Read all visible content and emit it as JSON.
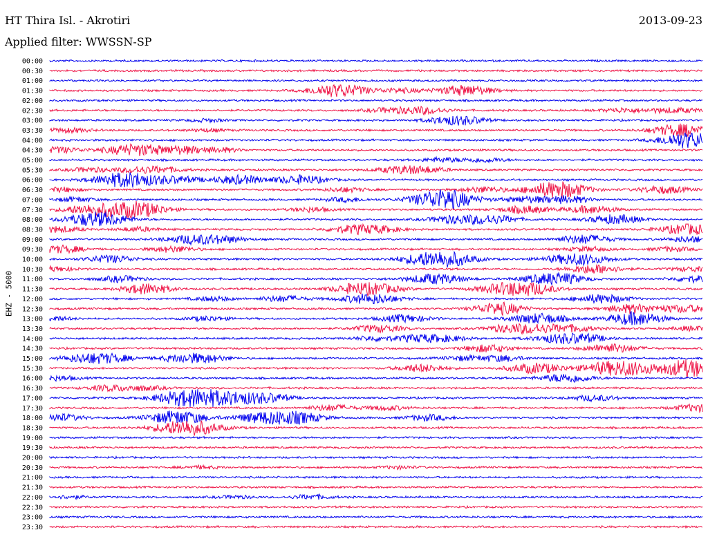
{
  "header": {
    "station": "HT Thira Isl. - Akrotiri",
    "date": "2013-09-23",
    "filter": "Applied filter: WWSSN-SP"
  },
  "chart_data": {
    "type": "line",
    "title": "HT Thira Isl. - Akrotiri",
    "ylabel": "EHZ - 5000",
    "colors": [
      "#0000ee",
      "#ee1144"
    ],
    "rows": [
      {
        "label": "00:00",
        "events": []
      },
      {
        "label": "00:30",
        "events": []
      },
      {
        "label": "01:00",
        "events": []
      },
      {
        "label": "01:30",
        "events": [
          [
            470,
            4
          ],
          [
            490,
            5
          ],
          [
            520,
            3
          ],
          [
            580,
            3
          ],
          [
            672,
            7
          ]
        ]
      },
      {
        "label": "02:00",
        "events": []
      },
      {
        "label": "02:30",
        "events": [
          [
            560,
            3
          ],
          [
            610,
            5
          ],
          [
            900,
            3
          ],
          [
            960,
            3
          ],
          [
            1000,
            2
          ]
        ]
      },
      {
        "label": "03:00",
        "events": [
          [
            300,
            2
          ],
          [
            650,
            5
          ],
          [
            680,
            3
          ]
        ]
      },
      {
        "label": "03:30",
        "events": [
          [
            100,
            3
          ],
          [
            300,
            2
          ],
          [
            970,
            5
          ],
          [
            1000,
            5
          ]
        ]
      },
      {
        "label": "04:00",
        "events": [
          [
            980,
            3
          ],
          [
            1003,
            9
          ]
        ]
      },
      {
        "label": "04:30",
        "events": [
          [
            85,
            4
          ],
          [
            195,
            8
          ],
          [
            265,
            5
          ],
          [
            320,
            3
          ]
        ]
      },
      {
        "label": "05:00",
        "events": [
          [
            640,
            3
          ],
          [
            700,
            3
          ]
        ]
      },
      {
        "label": "05:30",
        "events": [
          [
            130,
            3
          ],
          [
            200,
            4
          ],
          [
            240,
            3
          ],
          [
            580,
            5
          ],
          [
            620,
            3
          ]
        ]
      },
      {
        "label": "06:00",
        "events": [
          [
            165,
            6
          ],
          [
            200,
            7
          ],
          [
            260,
            4
          ],
          [
            345,
            6
          ],
          [
            435,
            6
          ]
        ]
      },
      {
        "label": "06:30",
        "events": [
          [
            90,
            3
          ],
          [
            500,
            3
          ],
          [
            700,
            4
          ],
          [
            795,
            7
          ],
          [
            820,
            6
          ],
          [
            960,
            5
          ]
        ]
      },
      {
        "label": "07:00",
        "events": [
          [
            110,
            3
          ],
          [
            500,
            3
          ],
          [
            632,
            8
          ],
          [
            652,
            7
          ],
          [
            760,
            4
          ],
          [
            820,
            5
          ]
        ]
      },
      {
        "label": "07:30",
        "events": [
          [
            120,
            5
          ],
          [
            175,
            8
          ],
          [
            210,
            6
          ],
          [
            450,
            3
          ],
          [
            760,
            5
          ],
          [
            855,
            5
          ]
        ]
      },
      {
        "label": "08:00",
        "events": [
          [
            125,
            6
          ],
          [
            155,
            6
          ],
          [
            655,
            5
          ],
          [
            710,
            6
          ],
          [
            890,
            6
          ]
        ]
      },
      {
        "label": "08:30",
        "events": [
          [
            85,
            4
          ],
          [
            200,
            3
          ],
          [
            510,
            5
          ],
          [
            550,
            4
          ],
          [
            995,
            7
          ]
        ]
      },
      {
        "label": "09:00",
        "events": [
          [
            278,
            6
          ],
          [
            325,
            4
          ],
          [
            845,
            6
          ],
          [
            1000,
            4
          ]
        ]
      },
      {
        "label": "09:30",
        "events": [
          [
            88,
            5
          ],
          [
            250,
            4
          ],
          [
            850,
            3
          ],
          [
            972,
            3
          ]
        ]
      },
      {
        "label": "10:00",
        "events": [
          [
            160,
            5
          ],
          [
            620,
            8
          ],
          [
            655,
            6
          ],
          [
            835,
            8
          ]
        ]
      },
      {
        "label": "10:30",
        "events": [
          [
            80,
            3
          ],
          [
            860,
            6
          ],
          [
            1000,
            3
          ]
        ]
      },
      {
        "label": "11:00",
        "events": [
          [
            175,
            4
          ],
          [
            630,
            7
          ],
          [
            790,
            6
          ],
          [
            820,
            4
          ],
          [
            1005,
            4
          ]
        ]
      },
      {
        "label": "11:30",
        "events": [
          [
            205,
            4
          ],
          [
            220,
            4
          ],
          [
            510,
            5
          ],
          [
            545,
            6
          ],
          [
            735,
            8
          ],
          [
            775,
            5
          ]
        ]
      },
      {
        "label": "12:00",
        "events": [
          [
            310,
            3
          ],
          [
            410,
            4
          ],
          [
            535,
            7
          ],
          [
            870,
            6
          ]
        ]
      },
      {
        "label": "12:30",
        "events": [
          [
            715,
            5
          ],
          [
            730,
            4
          ],
          [
            915,
            6
          ],
          [
            990,
            5
          ]
        ]
      },
      {
        "label": "13:00",
        "events": [
          [
            75,
            3
          ],
          [
            300,
            3
          ],
          [
            585,
            5
          ],
          [
            780,
            7
          ],
          [
            910,
            5
          ],
          [
            930,
            5
          ]
        ]
      },
      {
        "label": "13:30",
        "events": [
          [
            548,
            5
          ],
          [
            730,
            4
          ],
          [
            775,
            6
          ],
          [
            830,
            4
          ],
          [
            1003,
            3
          ]
        ]
      },
      {
        "label": "14:00",
        "events": [
          [
            540,
            3
          ],
          [
            607,
            5
          ],
          [
            650,
            3
          ],
          [
            810,
            6
          ],
          [
            850,
            4
          ]
        ]
      },
      {
        "label": "14:30",
        "events": [
          [
            705,
            5
          ],
          [
            885,
            6
          ]
        ]
      },
      {
        "label": "15:00",
        "events": [
          [
            120,
            5
          ],
          [
            160,
            5
          ],
          [
            265,
            5
          ],
          [
            300,
            4
          ],
          [
            670,
            3
          ],
          [
            725,
            4
          ]
        ]
      },
      {
        "label": "15:30",
        "events": [
          [
            610,
            5
          ],
          [
            775,
            7
          ],
          [
            880,
            7
          ],
          [
            915,
            6
          ],
          [
            985,
            7
          ],
          [
            1008,
            6
          ]
        ]
      },
      {
        "label": "16:00",
        "events": [
          [
            85,
            3
          ],
          [
            820,
            6
          ]
        ]
      },
      {
        "label": "16:30",
        "events": [
          [
            160,
            4
          ],
          [
            210,
            3
          ]
        ]
      },
      {
        "label": "17:00",
        "events": [
          [
            248,
            5
          ],
          [
            280,
            6
          ],
          [
            305,
            7
          ],
          [
            360,
            7
          ],
          [
            400,
            3
          ],
          [
            860,
            4
          ]
        ]
      },
      {
        "label": "17:30",
        "events": [
          [
            480,
            4
          ],
          [
            560,
            3
          ],
          [
            1010,
            5
          ]
        ]
      },
      {
        "label": "18:00",
        "events": [
          [
            85,
            5
          ],
          [
            245,
            6
          ],
          [
            270,
            5
          ],
          [
            385,
            8
          ],
          [
            435,
            6
          ],
          [
            620,
            4
          ]
        ]
      },
      {
        "label": "18:30",
        "events": [
          [
            255,
            6
          ],
          [
            285,
            7
          ]
        ]
      },
      {
        "label": "19:00",
        "events": []
      },
      {
        "label": "19:30",
        "events": []
      },
      {
        "label": "20:00",
        "events": []
      },
      {
        "label": "20:30",
        "events": [
          [
            290,
            2
          ],
          [
            575,
            2
          ]
        ]
      },
      {
        "label": "21:00",
        "events": []
      },
      {
        "label": "21:30",
        "events": []
      },
      {
        "label": "22:00",
        "events": [
          [
            100,
            2
          ],
          [
            340,
            2
          ],
          [
            450,
            3
          ]
        ]
      },
      {
        "label": "22:30",
        "events": []
      },
      {
        "label": "23:00",
        "events": []
      },
      {
        "label": "23:30",
        "events": []
      }
    ]
  }
}
